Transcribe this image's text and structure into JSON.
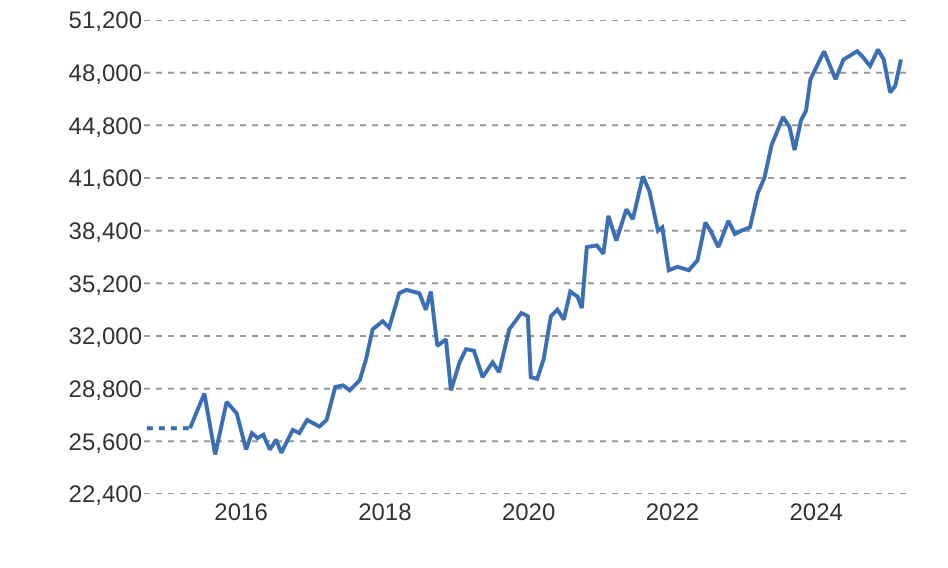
{
  "chart_data": {
    "type": "line",
    "series": [
      {
        "color": "#3a6fb5",
        "line_style": "dotted",
        "x": [
          2014.69,
          2015.29
        ],
        "values": [
          26400,
          26400
        ]
      },
      {
        "color": "#3a6fb5",
        "line_style": "solid",
        "x": [
          2015.29,
          2015.49,
          2015.64,
          2015.8,
          2015.94,
          2016.07,
          2016.15,
          2016.23,
          2016.31,
          2016.4,
          2016.49,
          2016.56,
          2016.72,
          2016.81,
          2016.92,
          2017.09,
          2017.19,
          2017.31,
          2017.42,
          2017.51,
          2017.65,
          2017.74,
          2017.83,
          2017.97,
          2018.06,
          2018.2,
          2018.3,
          2018.48,
          2018.57,
          2018.64,
          2018.73,
          2018.85,
          2018.92,
          2019.04,
          2019.13,
          2019.24,
          2019.36,
          2019.5,
          2019.59,
          2019.73,
          2019.9,
          2019.99,
          2020.03,
          2020.12,
          2020.21,
          2020.31,
          2020.4,
          2020.49,
          2020.58,
          2020.68,
          2020.74,
          2020.81,
          2020.95,
          2021.04,
          2021.11,
          2021.22,
          2021.36,
          2021.45,
          2021.59,
          2021.68,
          2021.8,
          2021.86,
          2021.95,
          2022.07,
          2022.23,
          2022.35,
          2022.46,
          2022.53,
          2022.64,
          2022.78,
          2022.87,
          2022.96,
          2023.08,
          2023.19,
          2023.28,
          2023.38,
          2023.54,
          2023.63,
          2023.7,
          2023.79,
          2023.86,
          2023.92,
          2024.11,
          2024.27,
          2024.38,
          2024.57,
          2024.64,
          2024.75,
          2024.86,
          2024.94,
          2025.03,
          2025.1,
          2025.18
        ],
        "values": [
          26400,
          28500,
          24800,
          28000,
          27300,
          25100,
          26100,
          25800,
          26000,
          25100,
          25700,
          24900,
          26300,
          26100,
          26900,
          26500,
          26900,
          28900,
          29000,
          28700,
          29300,
          30600,
          32400,
          32900,
          32500,
          34600,
          34800,
          34600,
          33600,
          34700,
          31400,
          31800,
          28700,
          30400,
          31200,
          31100,
          29500,
          30400,
          29800,
          32400,
          33400,
          33200,
          29500,
          29400,
          30600,
          33200,
          33600,
          33000,
          34700,
          34400,
          33700,
          37400,
          37500,
          37000,
          39300,
          37800,
          39700,
          39100,
          41700,
          40800,
          38400,
          38600,
          36000,
          36200,
          36000,
          36600,
          38900,
          38400,
          37400,
          39000,
          38200,
          38400,
          38600,
          40700,
          41600,
          43600,
          45300,
          44700,
          43300,
          45100,
          45700,
          47600,
          49300,
          47600,
          48800,
          49300,
          49000,
          48400,
          49400,
          48800,
          46800,
          47200,
          48800
        ]
      }
    ],
    "xlim": [
      2014.65,
      2025.25
    ],
    "xticks": [
      2016,
      2018,
      2020,
      2022,
      2024
    ],
    "ylim": [
      22400,
      51200
    ],
    "yticks": [
      {
        "value": 22400,
        "label": "22,400"
      },
      {
        "value": 25600,
        "label": "25,600"
      },
      {
        "value": 28800,
        "label": "28,800"
      },
      {
        "value": 32000,
        "label": "32,000"
      },
      {
        "value": 35200,
        "label": "35,200"
      },
      {
        "value": 38400,
        "label": "38,400"
      },
      {
        "value": 41600,
        "label": "41,600"
      },
      {
        "value": 44800,
        "label": "44,800"
      },
      {
        "value": 48000,
        "label": "48,000"
      },
      {
        "value": 51200,
        "label": "51,200"
      }
    ],
    "grid": "y",
    "marker": "none"
  }
}
